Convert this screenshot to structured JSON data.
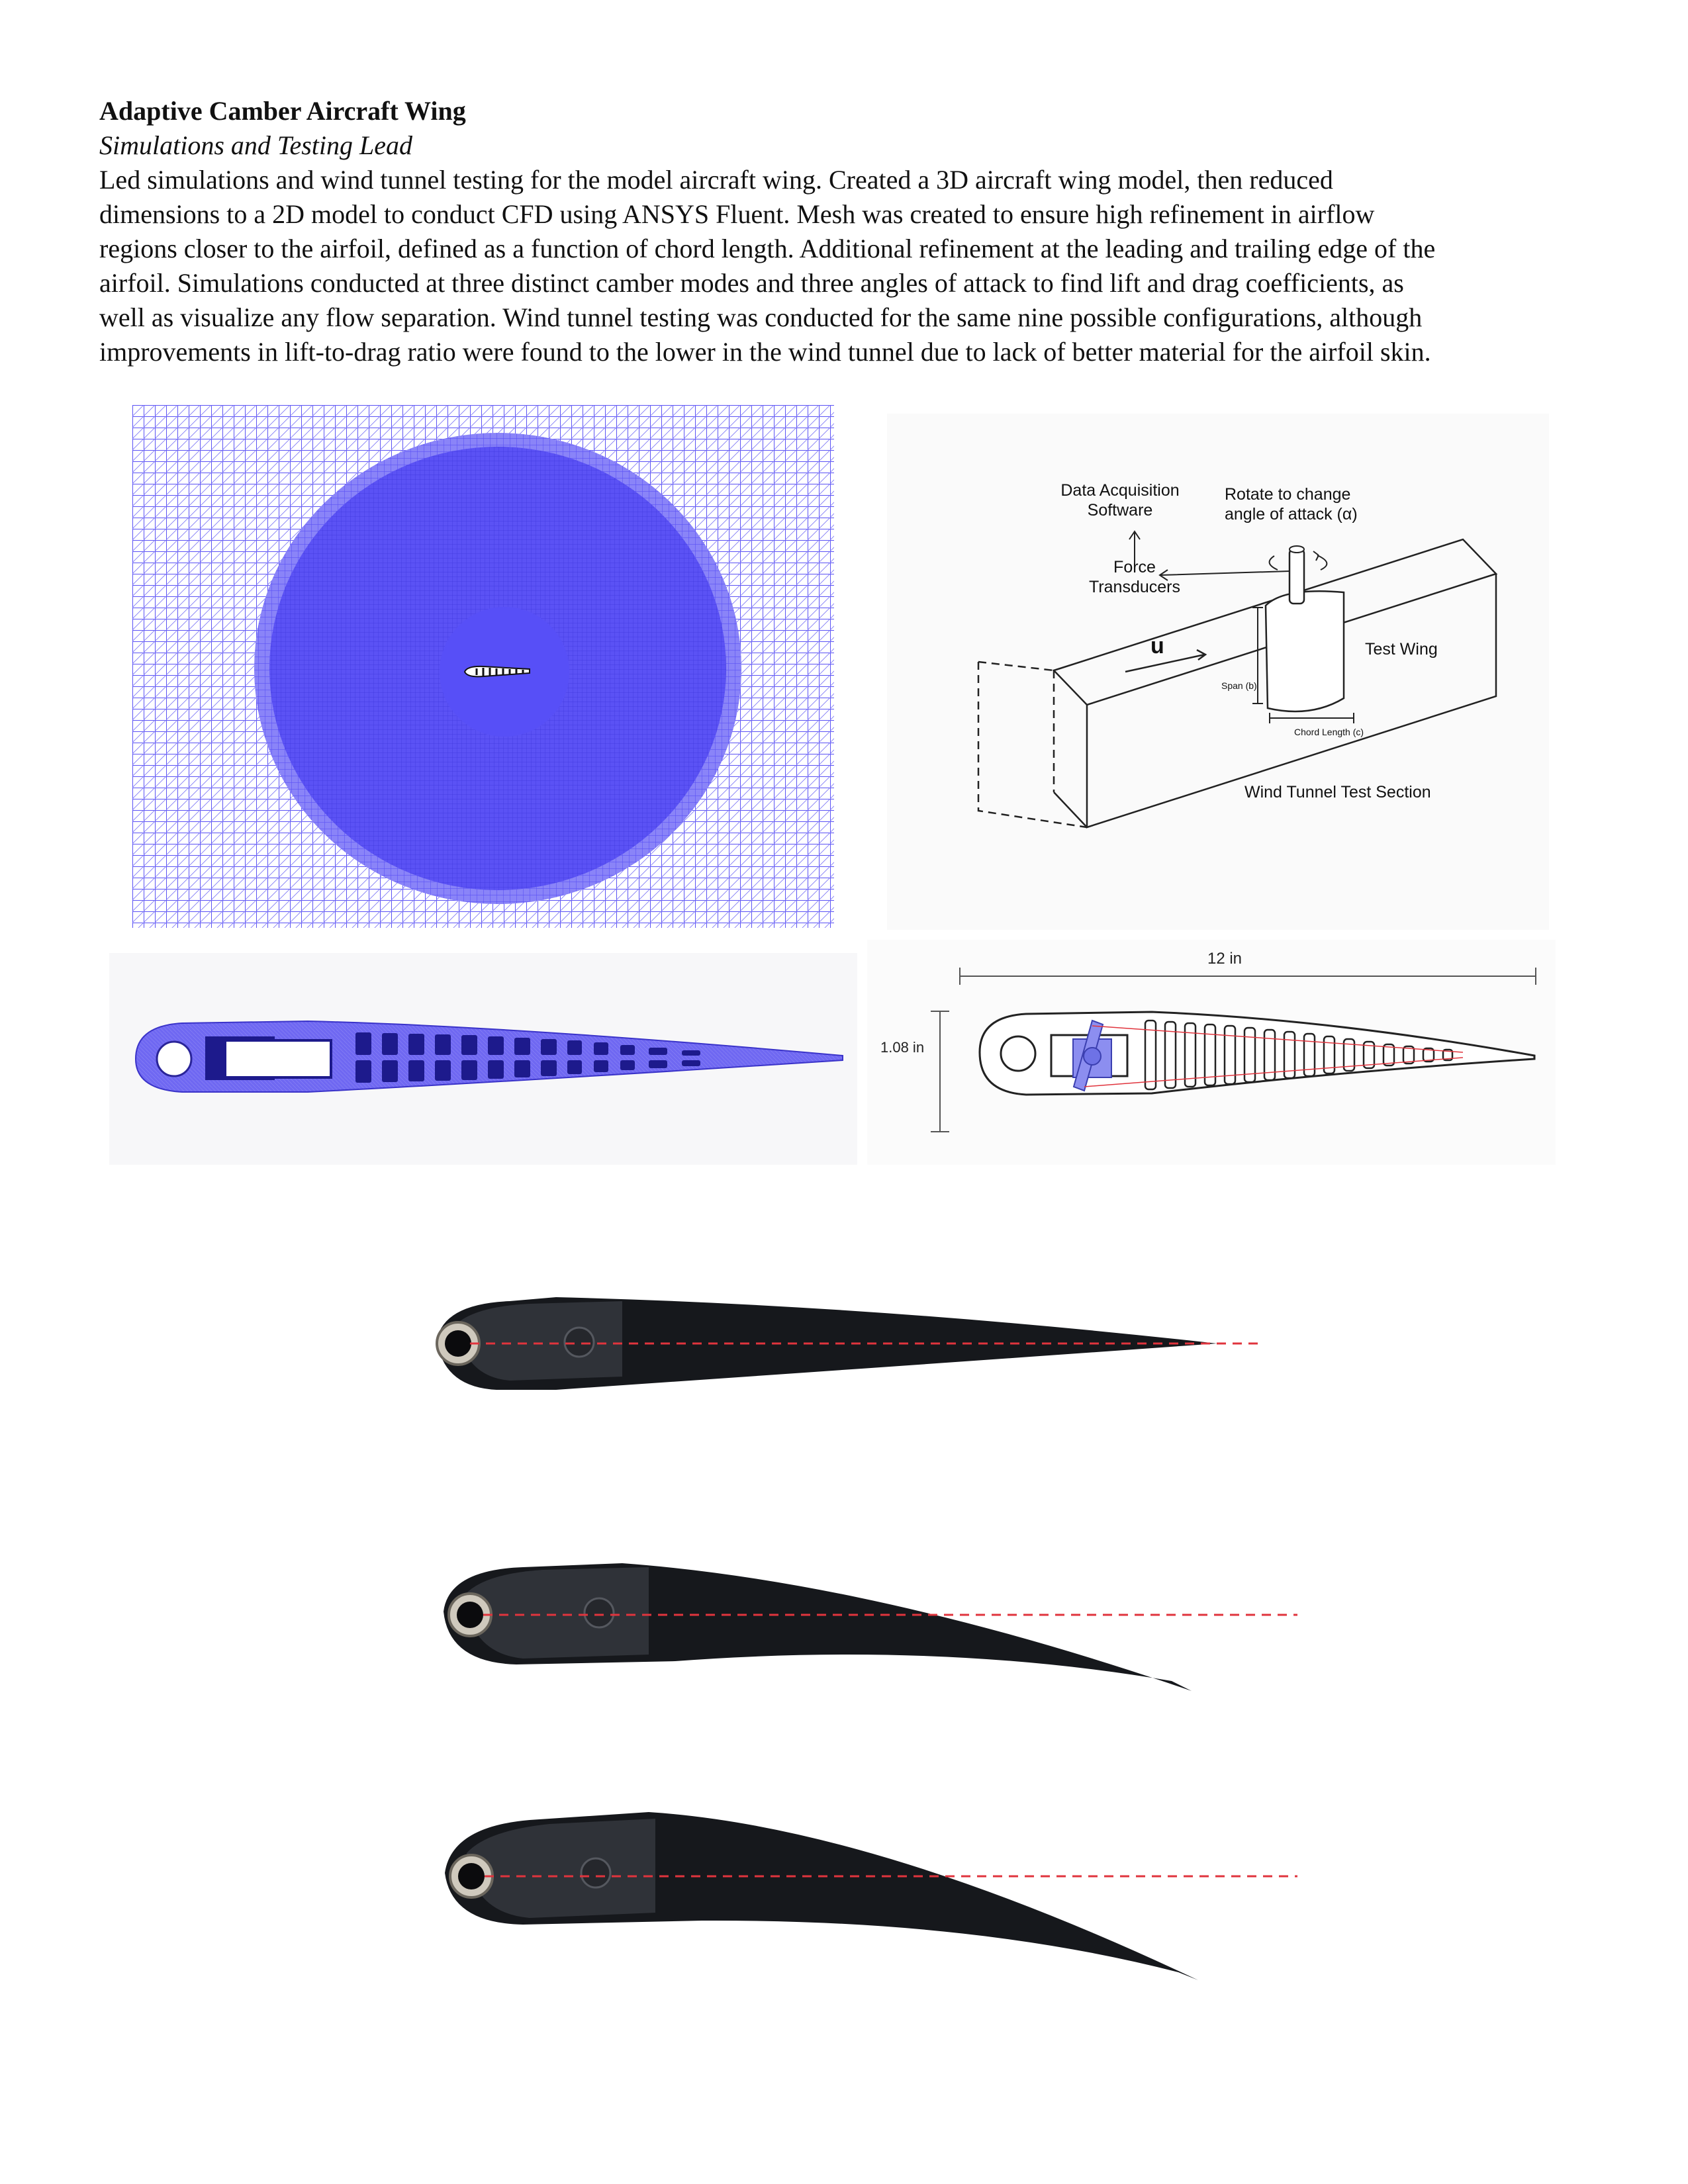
{
  "project": {
    "title": "Adaptive Camber Aircraft Wing",
    "role": "Simulations and Testing Lead",
    "description_lines": [
      "Led simulations and wind tunnel testing for the model aircraft wing. Created a 3D aircraft wing model, then reduced",
      "dimensions to a 2D model to conduct CFD using ANSYS Fluent. Mesh was created to ensure high refinement in airflow",
      "regions closer to the airfoil, defined as a function of chord length. Additional refinement at the leading and trailing edge of the",
      "airfoil. Simulations conducted at three distinct camber modes and three angles of attack to find lift and drag coefficients, as",
      "well as visualize any flow separation. Wind tunnel testing was conducted for the same nine possible configurations, although",
      "improvements in lift-to-drag ratio were found to the lower in the wind tunnel due to lack of better material for the airfoil skin."
    ]
  },
  "tunnel_diagram": {
    "daq_line1": "Data Acquisition",
    "daq_line2": "Software",
    "rotate_line1": "Rotate to change",
    "rotate_line2": "angle of attack (α)",
    "force_line1": "Force",
    "force_line2": "Transducers",
    "flow_label": "u",
    "test_wing": "Test Wing",
    "span": "Span (b)",
    "chord": "Chord Length (c)",
    "section": "Wind Tunnel Test Section"
  },
  "airfoil_drawing": {
    "length": "12 in",
    "thickness": "1.08 in"
  },
  "colors": {
    "mesh_blue": "#5b52f5",
    "mesh_dark": "#1d1a8c",
    "servo_blue": "#8c8ef0",
    "dash_red": "#e0343d",
    "wing_skin": "#16181c"
  }
}
